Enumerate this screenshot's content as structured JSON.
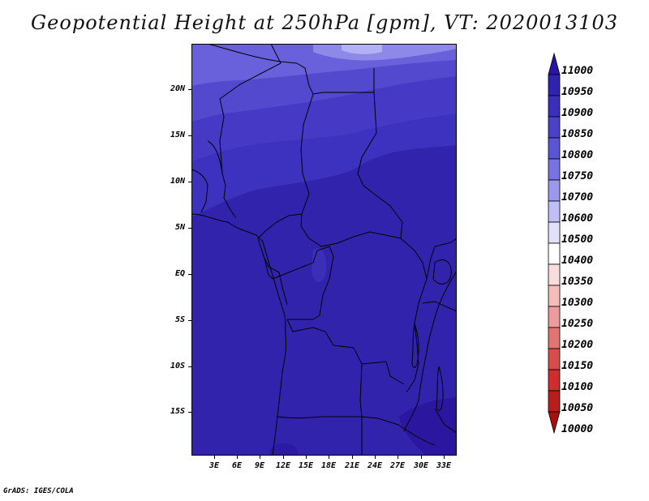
{
  "title": "Geopotential Height at 250hPa [gpm], VT: 2020013103",
  "footer": "GrADS: IGES/COLA",
  "map": {
    "latitude_labels": [
      "20N",
      "15N",
      "10N",
      "5N",
      "EQ",
      "5S",
      "10S",
      "15S"
    ],
    "longitude_labels": [
      "3E",
      "6E",
      "9E",
      "12E",
      "15E",
      "18E",
      "21E",
      "24E",
      "27E",
      "30E",
      "33E"
    ],
    "lat_range": [
      -19.7,
      24.7
    ],
    "lon_range": [
      0.3,
      34.8
    ]
  },
  "colorbar": {
    "levels": [
      "11000",
      "10950",
      "10900",
      "10850",
      "10800",
      "10750",
      "10700",
      "10600",
      "10500",
      "10400",
      "10350",
      "10300",
      "10250",
      "10200",
      "10150",
      "10100",
      "10050",
      "10000"
    ],
    "colors": [
      "#2a14a4",
      "#3021b2",
      "#3a2fbc",
      "#4a41c8",
      "#5a55d6",
      "#7873e2",
      "#9c98ec",
      "#c0bef6",
      "#e2e1fc",
      "#ffffff",
      "#fbdcdc",
      "#f5bcbc",
      "#ec9c9c",
      "#e27474",
      "#d94c4c",
      "#cf2d2d",
      "#bb1c1c",
      "#a81010"
    ]
  }
}
